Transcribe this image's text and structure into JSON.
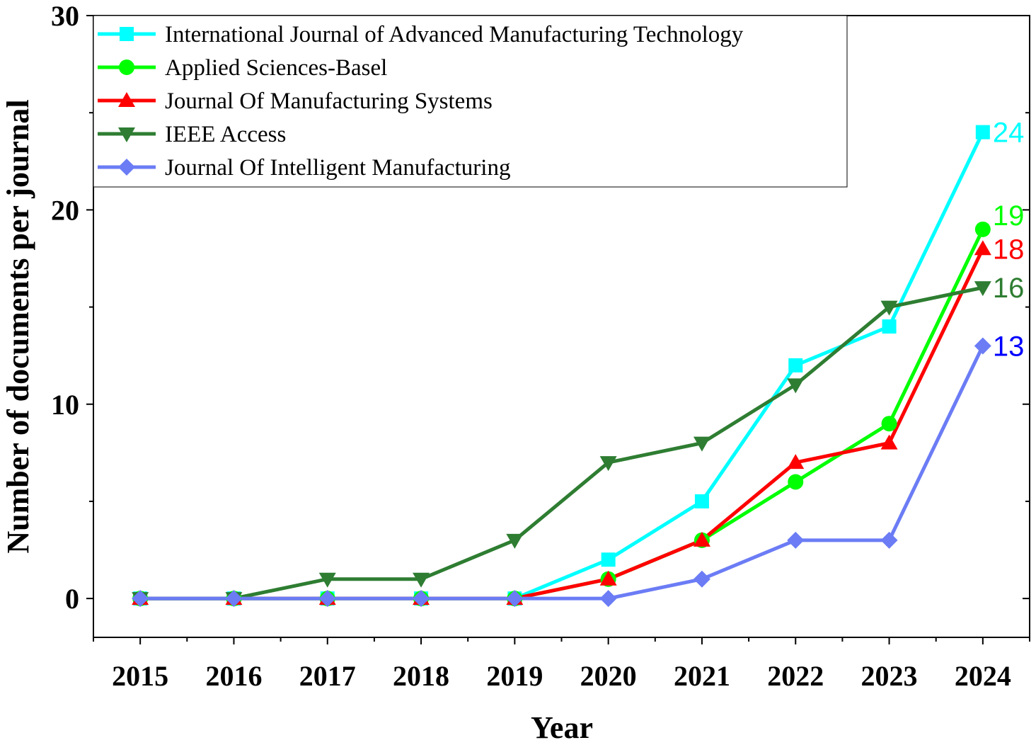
{
  "chart_data": {
    "type": "line",
    "xlabel": "Year",
    "ylabel": "Number of documents per journal",
    "x": [
      2015,
      2016,
      2017,
      2018,
      2019,
      2020,
      2021,
      2022,
      2023,
      2024
    ],
    "xlim": [
      2014.5,
      2024.5
    ],
    "ylim": [
      -2,
      30
    ],
    "yticks": [
      0,
      10,
      20,
      30
    ],
    "grid": false,
    "legend_position": "top-left",
    "series": [
      {
        "name": "International Journal of Advanced Manufacturing Technology",
        "color": "#00ffff",
        "marker": "square",
        "values": [
          0,
          0,
          0,
          0,
          0,
          2,
          5,
          12,
          14,
          24
        ],
        "end_label": "24"
      },
      {
        "name": "Applied Sciences-Basel",
        "color": "#00ff00",
        "marker": "circle",
        "values": [
          0,
          0,
          0,
          0,
          0,
          1,
          3,
          6,
          9,
          19
        ],
        "end_label": "19"
      },
      {
        "name": "Journal Of Manufacturing Systems",
        "color": "#ff0000",
        "marker": "triangle-up",
        "values": [
          0,
          0,
          0,
          0,
          0,
          1,
          3,
          7,
          8,
          18
        ],
        "end_label": "18"
      },
      {
        "name": "IEEE Access",
        "color": "#2e7d32",
        "marker": "triangle-down",
        "values": [
          0,
          0,
          1,
          1,
          3,
          7,
          8,
          11,
          15,
          16
        ],
        "end_label": "16"
      },
      {
        "name": "Journal Of Intelligent Manufacturing",
        "color": "#6b7cf5",
        "marker": "diamond",
        "values": [
          0,
          0,
          0,
          0,
          0,
          0,
          1,
          3,
          3,
          13
        ],
        "end_label": "13",
        "end_label_color": "#0000ff"
      }
    ]
  }
}
